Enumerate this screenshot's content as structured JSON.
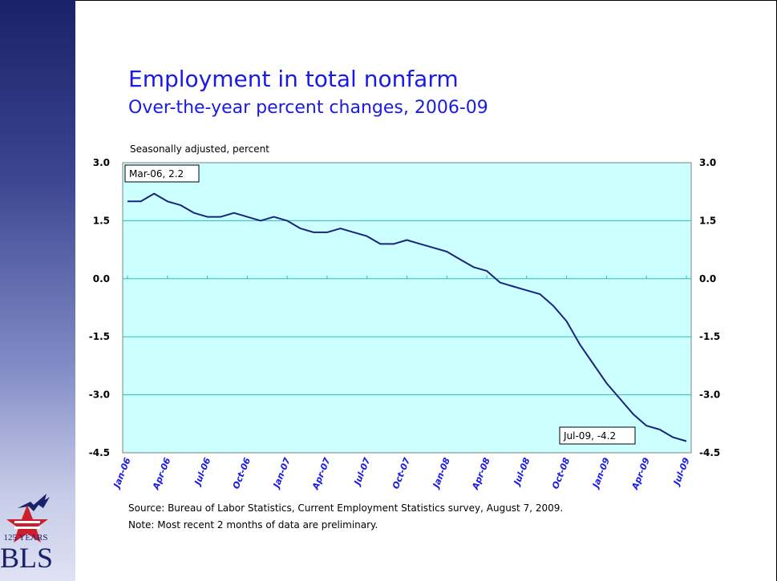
{
  "slide": {
    "title": "Employment in total nonfarm",
    "subtitle": "Over-the-year percent changes, 2006-09",
    "units_label": "Seasonally adjusted, percent",
    "source": "Source:  Bureau of Labor Statistics, Current Employment Statistics survey, August 7, 2009.",
    "note": "Note:  Most recent 2 months of data are preliminary.",
    "logo_years": "125 YEARS",
    "logo_text": "BLS"
  },
  "colors": {
    "plot_background": "#ccffff",
    "gridline": "#33b8b8",
    "line": "#1a237e",
    "title": "#1a1ae6",
    "tick_label_x": "#1a1ae6"
  },
  "chart_data": {
    "type": "line",
    "title": "Employment in total nonfarm",
    "ylabel": "Seasonally adjusted, percent",
    "ylim": [
      -4.5,
      3.0
    ],
    "y_ticks": [
      "3.0",
      "1.5",
      "0.0",
      "-1.5",
      "-3.0",
      "-4.5"
    ],
    "y_tick_values": [
      3.0,
      1.5,
      0.0,
      -1.5,
      -3.0,
      -4.5
    ],
    "dual_y_axis": true,
    "grid": true,
    "x": [
      "Jan-06",
      "Feb-06",
      "Mar-06",
      "Apr-06",
      "May-06",
      "Jun-06",
      "Jul-06",
      "Aug-06",
      "Sep-06",
      "Oct-06",
      "Nov-06",
      "Dec-06",
      "Jan-07",
      "Feb-07",
      "Mar-07",
      "Apr-07",
      "May-07",
      "Jun-07",
      "Jul-07",
      "Aug-07",
      "Sep-07",
      "Oct-07",
      "Nov-07",
      "Dec-07",
      "Jan-08",
      "Feb-08",
      "Mar-08",
      "Apr-08",
      "May-08",
      "Jun-08",
      "Jul-08",
      "Aug-08",
      "Sep-08",
      "Oct-08",
      "Nov-08",
      "Dec-08",
      "Jan-09",
      "Feb-09",
      "Mar-09",
      "Apr-09",
      "May-09",
      "Jun-09",
      "Jul-09"
    ],
    "x_tick_labels": [
      "Jan-06",
      "Apr-06",
      "Jul-06",
      "Oct-06",
      "Jan-07",
      "Apr-07",
      "Jul-07",
      "Oct-07",
      "Jan-08",
      "Apr-08",
      "Jul-08",
      "Oct-08",
      "Jan-09",
      "Apr-09",
      "Jul-09"
    ],
    "series": [
      {
        "values": [
          2.0,
          2.0,
          2.2,
          2.0,
          1.9,
          1.7,
          1.6,
          1.6,
          1.7,
          1.6,
          1.5,
          1.6,
          1.5,
          1.3,
          1.2,
          1.2,
          1.3,
          1.2,
          1.1,
          0.9,
          0.9,
          1.0,
          0.9,
          0.8,
          0.7,
          0.5,
          0.3,
          0.2,
          -0.1,
          -0.2,
          -0.3,
          -0.4,
          -0.7,
          -1.1,
          -1.7,
          -2.2,
          -2.7,
          -3.1,
          -3.5,
          -3.8,
          -3.9,
          -4.1,
          -4.2
        ]
      }
    ],
    "annotations": [
      {
        "label": "Mar-06, 2.2",
        "x": "Mar-06",
        "y": 2.2
      },
      {
        "label": "Jul-09, -4.2",
        "x": "Jul-09",
        "y": -4.2
      }
    ]
  }
}
